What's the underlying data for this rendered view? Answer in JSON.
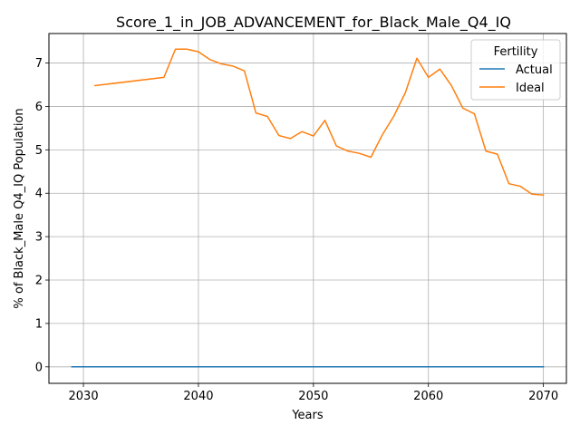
{
  "chart_data": {
    "type": "line",
    "title": "Score_1_in_JOB_ADVANCEMENT_for_Black_Male_Q4_IQ",
    "xlabel": "Years",
    "ylabel": "% of Black_Male Q4_IQ Population",
    "xlim": [
      2027,
      2072
    ],
    "ylim": [
      -0.38,
      7.68
    ],
    "xticks": [
      2030,
      2040,
      2050,
      2060,
      2070
    ],
    "yticks": [
      0,
      1,
      2,
      3,
      4,
      5,
      6,
      7
    ],
    "grid": true,
    "legend": {
      "title": "Fertility",
      "placement": "top-right"
    },
    "series": [
      {
        "name": "Actual",
        "color": "#1f77b4",
        "x": [
          2029,
          2070
        ],
        "y": [
          0,
          0
        ]
      },
      {
        "name": "Ideal",
        "color": "#ff7f0e",
        "x": [
          2031,
          2037,
          2038,
          2039,
          2040,
          2041,
          2042,
          2043,
          2044,
          2045,
          2046,
          2047,
          2048,
          2049,
          2050,
          2051,
          2052,
          2053,
          2054,
          2055,
          2056,
          2057,
          2058,
          2059,
          2060,
          2061,
          2062,
          2063,
          2064,
          2065,
          2066,
          2067,
          2068,
          2069,
          2070
        ],
        "y": [
          6.48,
          6.67,
          7.32,
          7.32,
          7.26,
          7.08,
          6.98,
          6.93,
          6.82,
          5.85,
          5.77,
          5.33,
          5.26,
          5.42,
          5.32,
          5.68,
          5.09,
          4.97,
          4.92,
          4.83,
          5.35,
          5.78,
          6.32,
          7.11,
          6.67,
          6.86,
          6.48,
          5.96,
          5.83,
          4.97,
          4.9,
          4.22,
          4.16,
          3.98,
          3.96
        ]
      }
    ]
  }
}
